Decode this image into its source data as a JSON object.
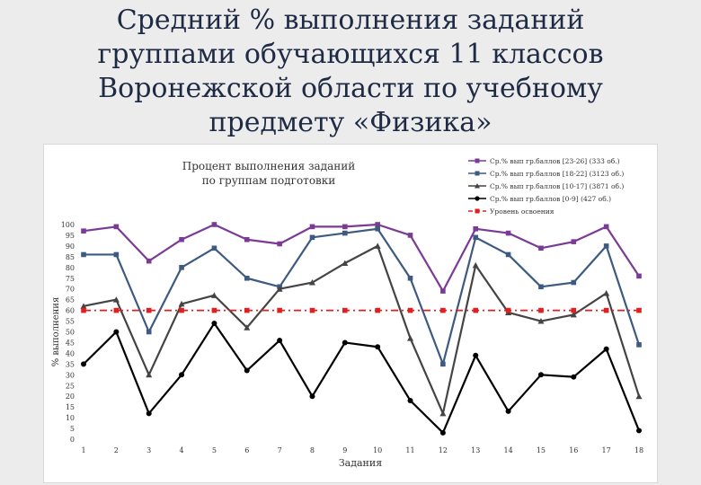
{
  "slide": {
    "title_lines": [
      "Средний % выполнения заданий",
      "группами обучающихся 11 классов",
      "Воронежской области по учебному",
      "предмету «Физика»"
    ]
  },
  "chart_data": {
    "type": "line",
    "title_lines": [
      "Процент выполнения заданий",
      "по группам подготовки"
    ],
    "xlabel": "Задания",
    "ylabel": "% выполнения",
    "x": [
      1,
      2,
      3,
      4,
      5,
      6,
      7,
      8,
      9,
      10,
      11,
      12,
      13,
      14,
      15,
      16,
      17,
      18
    ],
    "ylim": [
      0,
      100
    ],
    "yticks": [
      0,
      5,
      10,
      15,
      20,
      25,
      30,
      35,
      40,
      45,
      50,
      55,
      60,
      65,
      70,
      75,
      80,
      85,
      90,
      95,
      100
    ],
    "grid": false,
    "legend_position": "top-right",
    "series": [
      {
        "name": "Ср.% вып гр.баллов [23-26] (333 об.)",
        "color": "#7b3a96",
        "marker": "square",
        "values": [
          97,
          99,
          83,
          93,
          100,
          93,
          91,
          99,
          99,
          100,
          95,
          69,
          98,
          96,
          89,
          92,
          99,
          76
        ]
      },
      {
        "name": "Ср.% вып гр.баллов [18-22] (3123 об.)",
        "color": "#3d5a80",
        "marker": "square",
        "values": [
          86,
          86,
          50,
          80,
          89,
          75,
          71,
          94,
          96,
          98,
          75,
          35,
          94,
          86,
          71,
          73,
          90,
          44
        ]
      },
      {
        "name": "Ср.% вып гр.баллов [10-17] (3871 об.)",
        "color": "#444444",
        "marker": "triangle",
        "values": [
          62,
          65,
          30,
          63,
          67,
          52,
          70,
          73,
          82,
          90,
          47,
          12,
          81,
          59,
          55,
          58,
          68,
          20
        ]
      },
      {
        "name": "Ср.% вып гр.баллов [0-9] (427 об.)",
        "color": "#000000",
        "marker": "circle",
        "values": [
          35,
          50,
          12,
          30,
          54,
          32,
          46,
          20,
          45,
          43,
          18,
          3,
          39,
          13,
          30,
          29,
          42,
          4
        ]
      },
      {
        "name": "Уровень освоения",
        "color": "#e02020",
        "marker": "square",
        "dashed": true,
        "values": [
          60,
          60,
          60,
          60,
          60,
          60,
          60,
          60,
          60,
          60,
          60,
          60,
          60,
          60,
          60,
          60,
          60,
          60
        ]
      }
    ]
  }
}
